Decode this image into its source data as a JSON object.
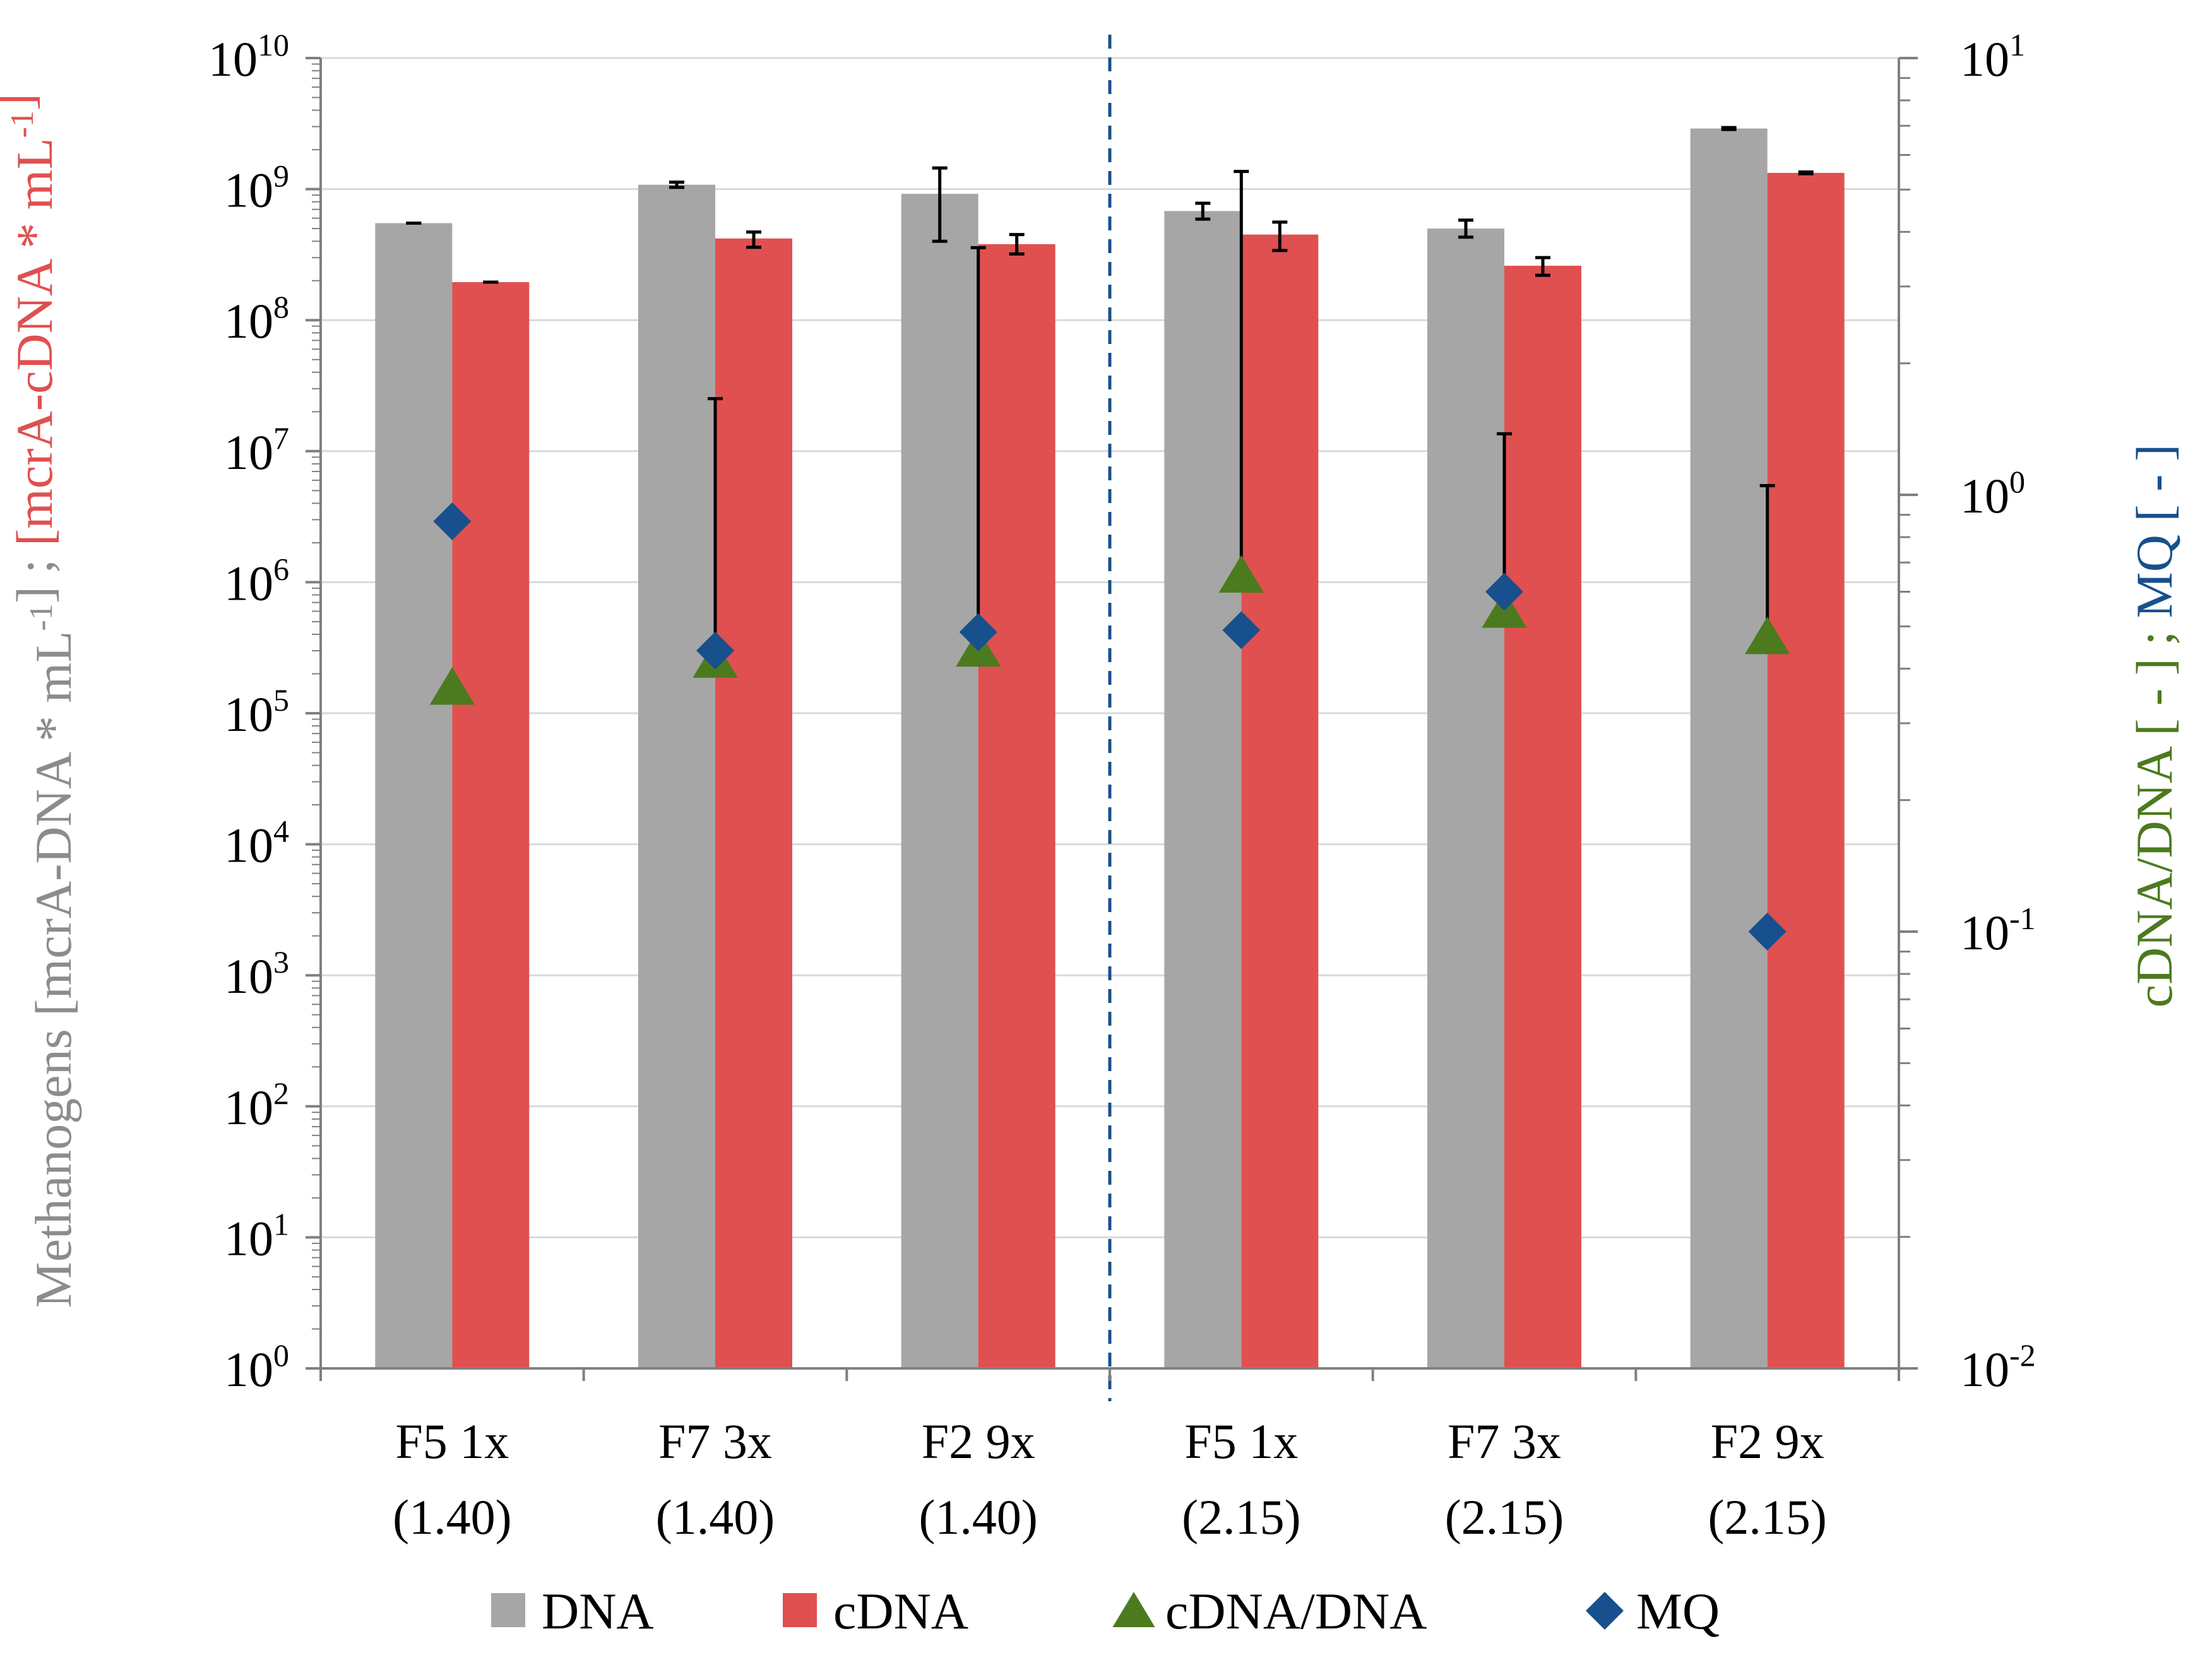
{
  "colors": {
    "dna": "#A6A6A6",
    "cdna": "#E05050",
    "ratio": "#4C7A1F",
    "mq": "#17508C",
    "grid": "#D9D9D9",
    "axis": "#808080",
    "left_title_gray": "#8C8C8C",
    "left_title_red": "#E05050",
    "right_title_green": "#4C7A1F",
    "right_title_blue": "#17508C",
    "divider": "#17508C"
  },
  "chart_data": {
    "type": "bar",
    "categories": [
      {
        "line1": "F5 1x",
        "line2": "(1.40)"
      },
      {
        "line1": "F7 3x",
        "line2": "(1.40)"
      },
      {
        "line1": "F2 9x",
        "line2": "(1.40)"
      },
      {
        "line1": "F5 1x",
        "line2": "(2.15)"
      },
      {
        "line1": "F7 3x",
        "line2": "(2.15)"
      },
      {
        "line1": "F2 9x",
        "line2": "(2.15)"
      }
    ],
    "left_axis": {
      "scale": "log",
      "range": [
        1,
        10000000000
      ],
      "ticks": [
        {
          "base": "10",
          "exp": "0"
        },
        {
          "base": "10",
          "exp": "1"
        },
        {
          "base": "10",
          "exp": "2"
        },
        {
          "base": "10",
          "exp": "3"
        },
        {
          "base": "10",
          "exp": "4"
        },
        {
          "base": "10",
          "exp": "5"
        },
        {
          "base": "10",
          "exp": "6"
        },
        {
          "base": "10",
          "exp": "7"
        },
        {
          "base": "10",
          "exp": "8"
        },
        {
          "base": "10",
          "exp": "9"
        },
        {
          "base": "10",
          "exp": "10"
        }
      ],
      "title_parts": [
        {
          "text": "Methanogens [mcrA-DNA * mL",
          "role": "gray"
        },
        {
          "text": "-1",
          "role": "gray",
          "sup": true
        },
        {
          "text": "] ; ",
          "role": "gray"
        },
        {
          "text": "[mcrA-cDNA * mL",
          "role": "red"
        },
        {
          "text": "-1",
          "role": "red",
          "sup": true
        },
        {
          "text": "]",
          "role": "red"
        }
      ]
    },
    "right_axis": {
      "scale": "log",
      "range": [
        0.01,
        10
      ],
      "ticks": [
        {
          "base": "10",
          "exp": "-2"
        },
        {
          "base": "10",
          "exp": "-1"
        },
        {
          "base": "10",
          "exp": "0"
        },
        {
          "base": "10",
          "exp": "1"
        }
      ],
      "title_parts": [
        {
          "text": "cDNA/DNA [ - ] ; ",
          "role": "green"
        },
        {
          "text": "MQ [ - ]",
          "role": "blue"
        }
      ]
    },
    "series": [
      {
        "name": "DNA",
        "kind": "bar",
        "axis": "left",
        "values": [
          550000000,
          1080000000,
          920000000,
          680000000,
          500000000,
          2900000000
        ],
        "err_low": [
          550000000,
          1030000000,
          400000000,
          590000000,
          430000000,
          2850000000
        ],
        "err_high": [
          550000000,
          1130000000,
          1450000000,
          780000000,
          580000000,
          2950000000
        ]
      },
      {
        "name": "cDNA",
        "kind": "bar",
        "axis": "left",
        "values": [
          195000000,
          420000000,
          380000000,
          450000000,
          260000000,
          1330000000
        ],
        "err_low": [
          195000000,
          360000000,
          320000000,
          340000000,
          220000000,
          1310000000
        ],
        "err_high": [
          195000000,
          470000000,
          450000000,
          560000000,
          300000000,
          1350000000
        ]
      },
      {
        "name": "cDNA/DNA",
        "kind": "triangle",
        "axis": "right",
        "values": [
          0.36,
          0.415,
          0.44,
          0.65,
          0.54,
          0.47
        ],
        "err_high": [
          null,
          1.66,
          3.68,
          5.5,
          1.38,
          1.05
        ]
      },
      {
        "name": "MQ",
        "kind": "diamond",
        "axis": "right",
        "values": [
          0.87,
          0.44,
          0.485,
          0.49,
          0.6,
          0.1
        ]
      }
    ],
    "divider_after_category": 3,
    "legend": [
      {
        "label": "DNA",
        "shape": "square",
        "series": "dna"
      },
      {
        "label": "cDNA",
        "shape": "square",
        "series": "cdna"
      },
      {
        "label": "cDNA/DNA",
        "shape": "triangle",
        "series": "ratio"
      },
      {
        "label": "MQ",
        "shape": "diamond",
        "series": "mq"
      }
    ]
  }
}
